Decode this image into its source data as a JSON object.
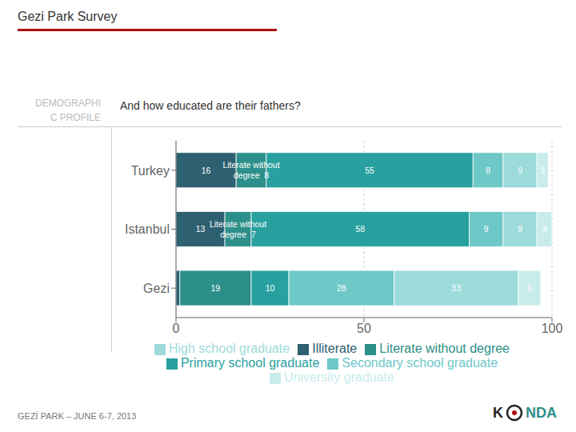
{
  "chart_data": {
    "type": "bar",
    "title": "Gezi Park Survey",
    "subtitle": "And how educated are their fathers?",
    "annotations": [
      "DEMOGRAPHI",
      "C PROFILE",
      "GEZİ PARK – JUNE 6-7, 2013",
      "K",
      "NDA"
    ],
    "orientation": "horizontal",
    "stacked": true,
    "categories": [
      "Turkey",
      "Istanbul",
      "Gezi"
    ],
    "series": [
      {
        "name": "Illiterate",
        "color": "#2d6070",
        "values": [
          16,
          13,
          1
        ],
        "value_labels": [
          "16",
          "13",
          null
        ]
      },
      {
        "name": "Literate without degree",
        "color": "#2d8f8a",
        "values": [
          8,
          7,
          19
        ],
        "value_labels": [
          "Literate without\ndegree  8",
          "Literate without\ndegree  7",
          "19"
        ]
      },
      {
        "name": "Primary school graduate",
        "color": "#28a0a0",
        "values": [
          55,
          58,
          10
        ],
        "value_labels": [
          "55",
          "58",
          "10"
        ]
      },
      {
        "name": "Secondary school graduate",
        "color": "#6ec8c8",
        "values": [
          8,
          9,
          28
        ],
        "value_labels": [
          "8",
          "9",
          "28"
        ]
      },
      {
        "name": "High school graduate",
        "color": "#9ddada",
        "values": [
          9,
          9,
          33
        ],
        "value_labels": [
          "9",
          "9",
          "33"
        ]
      },
      {
        "name": "University graduate",
        "color": "#c8ecec",
        "values": [
          3,
          4,
          6
        ],
        "value_labels": [
          "3",
          "4",
          "6"
        ]
      }
    ],
    "xlim": [
      0,
      100
    ],
    "xticks": [
      0,
      50,
      100
    ],
    "grid": true,
    "legend": "bottom",
    "data_labels": true
  }
}
